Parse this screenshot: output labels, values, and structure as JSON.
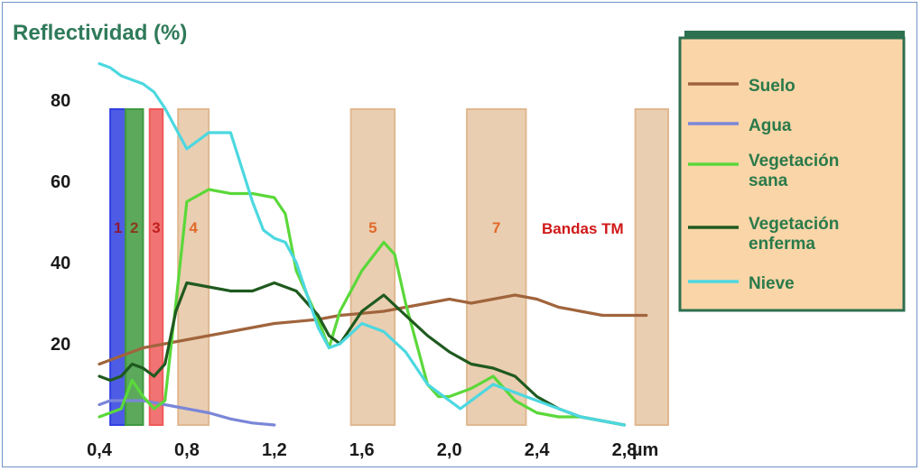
{
  "chart_data": {
    "type": "line",
    "title": "",
    "ylabel": "Reflectividad (%)",
    "xlabel": "µm",
    "xlim": [
      0.4,
      3.0
    ],
    "ylim": [
      0,
      90
    ],
    "xticks": [
      "0,4",
      "0,8",
      "1,2",
      "1,6",
      "2,0",
      "2,4",
      "2,8"
    ],
    "xtick_values": [
      0.4,
      0.8,
      1.2,
      1.6,
      2.0,
      2.4,
      2.8
    ],
    "yticks": [
      "80",
      "60",
      "40",
      "20"
    ],
    "ytick_values": [
      80,
      60,
      40,
      20
    ],
    "grid": false,
    "legend_position": "right",
    "bands_label": "Bandas TM",
    "bands": [
      {
        "label": "1",
        "range": [
          0.45,
          0.52
        ],
        "color": "#2f3fe0",
        "text_color": "#8a1a3a"
      },
      {
        "label": "2",
        "range": [
          0.52,
          0.6
        ],
        "color": "#3f9a3f",
        "text_color": "#8a3a1a"
      },
      {
        "label": "3",
        "range": [
          0.63,
          0.69
        ],
        "color": "#f05a5a",
        "text_color": "#c02020"
      },
      {
        "label": "4",
        "range": [
          0.76,
          0.9
        ],
        "color": "#e8c9a8",
        "text_color": "#e06a2a"
      },
      {
        "label": "5",
        "range": [
          1.55,
          1.75
        ],
        "color": "#e8c9a8",
        "text_color": "#e06a2a"
      },
      {
        "label": "7",
        "range": [
          2.08,
          2.35
        ],
        "color": "#e8c9a8",
        "text_color": "#e06a2a"
      },
      {
        "label": "",
        "range": [
          2.85,
          3.0
        ],
        "color": "#e8c9a8",
        "text_color": "#e06a2a"
      }
    ],
    "series": [
      {
        "name": "Suelo",
        "color": "#a0643c",
        "x": [
          0.4,
          0.5,
          0.6,
          0.7,
          0.8,
          0.9,
          1.0,
          1.1,
          1.2,
          1.3,
          1.4,
          1.5,
          1.6,
          1.7,
          1.8,
          1.9,
          2.0,
          2.1,
          2.2,
          2.3,
          2.4,
          2.5,
          2.6,
          2.7,
          2.8,
          2.9
        ],
        "y": [
          15,
          17,
          19,
          20,
          21,
          22,
          23,
          24,
          25,
          25.5,
          26,
          27,
          27.5,
          28,
          29,
          30,
          31,
          30,
          31,
          32,
          31,
          29,
          28,
          27,
          27,
          27
        ]
      },
      {
        "name": "Agua",
        "color": "#7a86d8",
        "x": [
          0.4,
          0.45,
          0.5,
          0.6,
          0.7,
          0.8,
          0.9,
          1.0,
          1.1,
          1.2
        ],
        "y": [
          5,
          6,
          6,
          6,
          5,
          4,
          3,
          1.5,
          0.5,
          0
        ]
      },
      {
        "name": "Vegetación sana",
        "color": "#5bd83a",
        "x": [
          0.4,
          0.45,
          0.5,
          0.55,
          0.6,
          0.65,
          0.7,
          0.75,
          0.8,
          0.9,
          1.0,
          1.1,
          1.2,
          1.25,
          1.3,
          1.4,
          1.45,
          1.5,
          1.6,
          1.7,
          1.75,
          1.8,
          1.9,
          1.95,
          2.0,
          2.1,
          2.2,
          2.3,
          2.4,
          2.5,
          2.6,
          2.7,
          2.8
        ],
        "y": [
          2,
          3,
          4,
          11,
          7,
          4,
          6,
          30,
          55,
          58,
          57,
          57,
          56,
          52,
          38,
          26,
          19,
          28,
          38,
          45,
          42,
          30,
          10,
          7,
          7,
          9,
          12,
          6,
          3,
          2,
          2,
          1,
          0
        ]
      },
      {
        "name": "Vegetación enferma",
        "color": "#1f5a1f",
        "x": [
          0.4,
          0.45,
          0.5,
          0.55,
          0.6,
          0.65,
          0.7,
          0.75,
          0.8,
          0.9,
          1.0,
          1.1,
          1.2,
          1.3,
          1.4,
          1.45,
          1.5,
          1.6,
          1.7,
          1.8,
          1.9,
          2.0,
          2.1,
          2.2,
          2.3,
          2.4,
          2.5,
          2.6,
          2.7,
          2.8
        ],
        "y": [
          12,
          11,
          12,
          15,
          14,
          12,
          15,
          28,
          35,
          34,
          33,
          33,
          35,
          33,
          27,
          22,
          20,
          28,
          32,
          27,
          22,
          18,
          15,
          14,
          12,
          7,
          4,
          2,
          1,
          0
        ]
      },
      {
        "name": "Nieve",
        "color": "#4cd8e0",
        "x": [
          0.4,
          0.45,
          0.5,
          0.55,
          0.6,
          0.65,
          0.7,
          0.8,
          0.9,
          1.0,
          1.1,
          1.15,
          1.2,
          1.25,
          1.3,
          1.4,
          1.45,
          1.5,
          1.6,
          1.7,
          1.8,
          1.9,
          2.0,
          2.05,
          2.1,
          2.2,
          2.3,
          2.4,
          2.5,
          2.6,
          2.7,
          2.8
        ],
        "y": [
          89,
          88,
          86,
          85,
          84,
          82,
          78,
          68,
          72,
          72,
          55,
          48,
          46,
          45,
          40,
          24,
          19,
          20,
          25,
          23,
          18,
          10,
          6,
          4,
          6,
          10,
          8,
          6,
          4,
          2,
          1,
          0
        ]
      }
    ]
  },
  "legend": {
    "items": [
      {
        "label_lines": [
          "Suelo"
        ]
      },
      {
        "label_lines": [
          "Agua"
        ]
      },
      {
        "label_lines": [
          "Vegetación",
          " sana"
        ]
      },
      {
        "label_lines": [
          "Vegetación",
          "enferma"
        ]
      },
      {
        "label_lines": [
          "Nieve"
        ]
      }
    ],
    "box_color": "#fad5a8",
    "border_color": "#2d7050",
    "text_color": "#2a7a4a"
  },
  "colors": {
    "axis_title": "#2f7a5a",
    "axis_ticks": "#1a1a1a",
    "bands_label": "#d01818"
  }
}
